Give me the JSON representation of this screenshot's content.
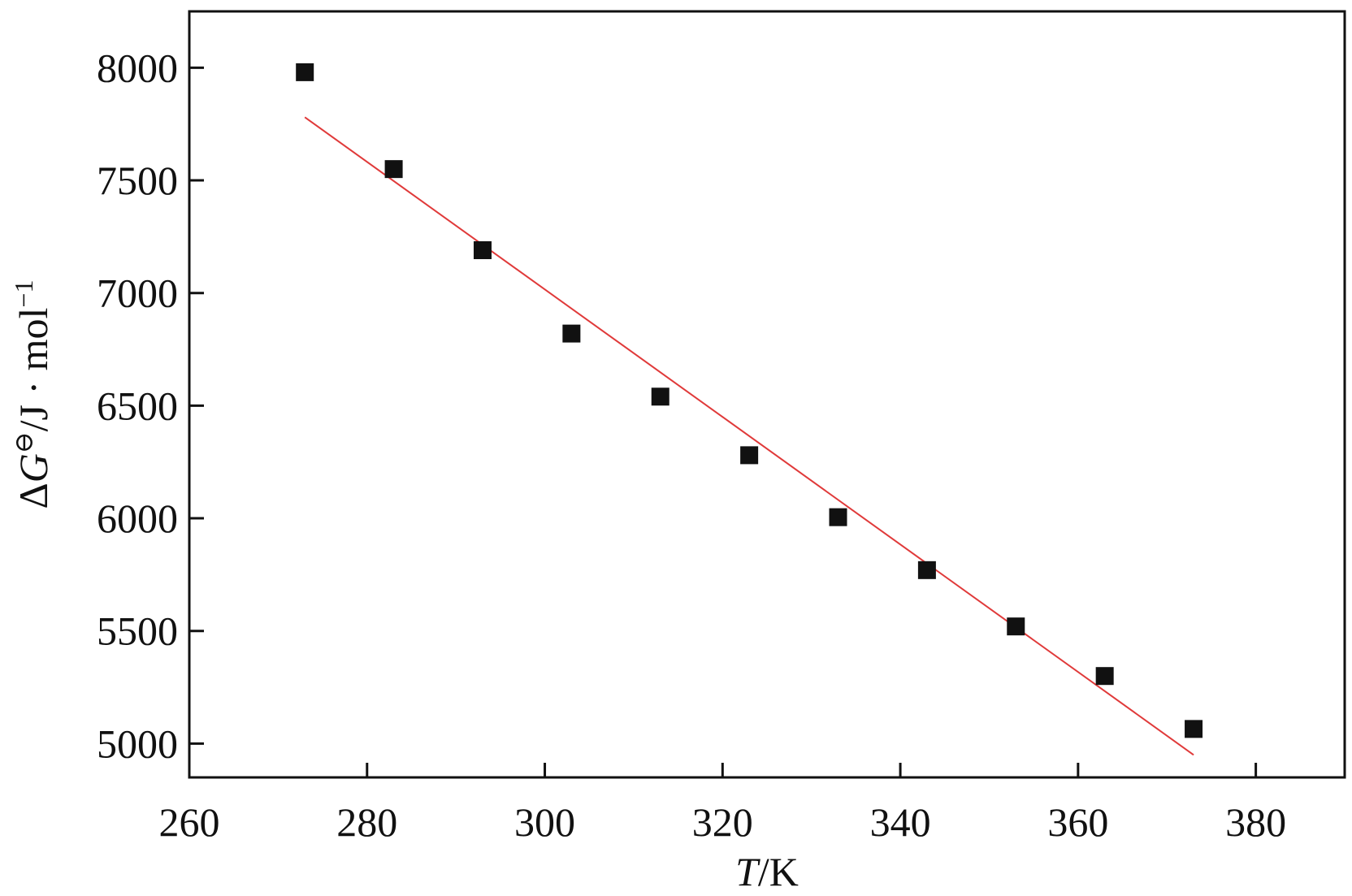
{
  "chart_data": {
    "type": "scatter",
    "title": "",
    "xlabel": "T/K",
    "xlabel_parts": {
      "italic": "T",
      "rest": "/K"
    },
    "ylabel": "ΔG⊖/J · mol⁻¹",
    "ylabel_parts": {
      "prefix": "Δ",
      "italic": "G",
      "sup1": "⊖",
      "mid": "/J · mol",
      "sup2": "−1"
    },
    "xlim": [
      260,
      390
    ],
    "ylim": [
      4850,
      8250
    ],
    "xticks": [
      260,
      280,
      300,
      320,
      340,
      360,
      380
    ],
    "yticks": [
      5000,
      5500,
      6000,
      6500,
      7000,
      7500,
      8000
    ],
    "grid": false,
    "series": [
      {
        "marker": "square",
        "color": "#111111",
        "x": [
          273,
          283,
          293,
          303,
          313,
          323,
          333,
          343,
          353,
          363,
          373
        ],
        "y": [
          7980,
          7550,
          7190,
          6820,
          6540,
          6280,
          6005,
          5770,
          5520,
          5300,
          5065
        ]
      }
    ],
    "fit_line": {
      "color": "#e03a3a",
      "x": [
        273,
        373
      ],
      "y": [
        7780,
        4950
      ]
    }
  }
}
